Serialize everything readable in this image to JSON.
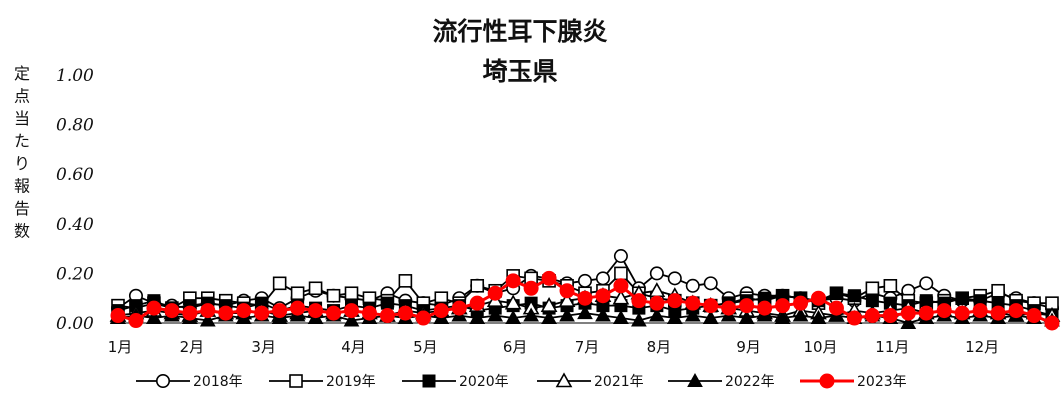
{
  "chart_data": {
    "type": "line",
    "title": "流行性耳下腺炎",
    "subtitle": "埼玉県",
    "ylabel": "定点当たり報告数",
    "xlabel": "",
    "ylim": [
      0,
      1.0
    ],
    "yticks": [
      "0.00",
      "0.20",
      "0.40",
      "0.60",
      "0.80",
      "1.00"
    ],
    "months": [
      "1月",
      "2月",
      "3月",
      "4月",
      "5月",
      "6月",
      "7月",
      "8月",
      "9月",
      "10月",
      "11月",
      "12月"
    ],
    "month_weeks": [
      1,
      5,
      9,
      14,
      18,
      23,
      27,
      31,
      36,
      40,
      44,
      49
    ],
    "weeks": 53,
    "grid": false,
    "legend_position": "bottom",
    "series": [
      {
        "name": "2018年",
        "color": "#000000",
        "marker": "circle-open",
        "values": [
          0.06,
          0.11,
          0.08,
          0.07,
          0.06,
          0.08,
          0.07,
          0.09,
          0.1,
          0.06,
          0.1,
          0.13,
          0.11,
          0.1,
          0.09,
          0.12,
          0.09,
          0.08,
          0.07,
          0.1,
          0.15,
          0.12,
          0.14,
          0.19,
          0.18,
          0.16,
          0.17,
          0.18,
          0.27,
          0.14,
          0.2,
          0.18,
          0.15,
          0.16,
          0.1,
          0.12,
          0.11,
          0.11,
          0.1,
          0.09,
          0.1,
          0.09,
          0.12,
          0.1,
          0.13,
          0.16,
          0.11,
          0.09,
          0.09,
          0.12,
          0.1,
          0.08,
          0.06
        ]
      },
      {
        "name": "2019年",
        "color": "#000000",
        "marker": "square-open",
        "values": [
          0.07,
          0.06,
          0.08,
          0.06,
          0.1,
          0.1,
          0.09,
          0.08,
          0.07,
          0.16,
          0.12,
          0.14,
          0.11,
          0.12,
          0.1,
          0.09,
          0.17,
          0.08,
          0.1,
          0.08,
          0.15,
          0.13,
          0.19,
          0.18,
          0.17,
          0.15,
          0.12,
          0.13,
          0.2,
          0.12,
          0.1,
          0.09,
          0.08,
          0.07,
          0.08,
          0.1,
          0.09,
          0.11,
          0.1,
          0.08,
          0.12,
          0.1,
          0.14,
          0.15,
          0.09,
          0.08,
          0.09,
          0.1,
          0.11,
          0.13,
          0.09,
          0.08,
          0.08
        ]
      },
      {
        "name": "2020年",
        "color": "#000000",
        "marker": "square-filled",
        "values": [
          0.05,
          0.07,
          0.09,
          0.06,
          0.07,
          0.08,
          0.07,
          0.06,
          0.08,
          0.05,
          0.07,
          0.06,
          0.05,
          0.07,
          0.06,
          0.08,
          0.07,
          0.05,
          0.06,
          0.07,
          0.05,
          0.06,
          0.07,
          0.08,
          0.06,
          0.07,
          0.08,
          0.07,
          0.07,
          0.06,
          0.07,
          0.05,
          0.06,
          0.07,
          0.08,
          0.09,
          0.1,
          0.11,
          0.1,
          0.09,
          0.12,
          0.11,
          0.09,
          0.08,
          0.07,
          0.09,
          0.08,
          0.1,
          0.09,
          0.08,
          0.07,
          0.05,
          0.03
        ]
      },
      {
        "name": "2021年",
        "color": "#000000",
        "marker": "triangle-open",
        "values": [
          0.03,
          0.04,
          0.05,
          0.04,
          0.03,
          0.05,
          0.04,
          0.04,
          0.05,
          0.03,
          0.04,
          0.05,
          0.04,
          0.05,
          0.04,
          0.03,
          0.05,
          0.04,
          0.05,
          0.06,
          0.07,
          0.09,
          0.08,
          0.06,
          0.07,
          0.09,
          0.1,
          0.11,
          0.1,
          0.12,
          0.13,
          0.11,
          0.08,
          0.07,
          0.06,
          0.05,
          0.04,
          0.03,
          0.05,
          0.04,
          0.03,
          0.05,
          0.04,
          0.05,
          0.06,
          0.04,
          0.05,
          0.04,
          0.05,
          0.04,
          0.03,
          0.04,
          0.03
        ]
      },
      {
        "name": "2022年",
        "color": "#000000",
        "marker": "triangle-filled",
        "values": [
          0.02,
          0.03,
          0.02,
          0.03,
          0.02,
          0.01,
          0.03,
          0.02,
          0.03,
          0.02,
          0.03,
          0.02,
          0.03,
          0.01,
          0.02,
          0.03,
          0.02,
          0.03,
          0.02,
          0.03,
          0.02,
          0.03,
          0.02,
          0.03,
          0.02,
          0.03,
          0.04,
          0.03,
          0.02,
          0.01,
          0.03,
          0.02,
          0.03,
          0.02,
          0.03,
          0.02,
          0.03,
          0.02,
          0.03,
          0.02,
          0.03,
          0.02,
          0.03,
          0.02,
          0.0,
          0.02,
          0.03,
          0.02,
          0.03,
          0.02,
          0.03,
          0.02,
          0.01
        ]
      },
      {
        "name": "2023年",
        "color": "#ff0000",
        "marker": "circle-filled",
        "values": [
          0.03,
          0.01,
          0.06,
          0.05,
          0.04,
          0.05,
          0.04,
          0.05,
          0.04,
          0.05,
          0.06,
          0.05,
          0.04,
          0.05,
          0.04,
          0.03,
          0.04,
          0.02,
          0.05,
          0.06,
          0.08,
          0.12,
          0.17,
          0.14,
          0.18,
          0.13,
          0.1,
          0.11,
          0.15,
          0.09,
          0.08,
          0.09,
          0.08,
          0.07,
          0.06,
          0.07,
          0.06,
          0.07,
          0.08,
          0.1,
          0.06,
          0.02,
          0.03,
          0.03,
          0.04,
          0.04,
          0.05,
          0.04,
          0.05,
          0.04,
          0.05,
          0.03,
          0.0
        ]
      }
    ]
  }
}
